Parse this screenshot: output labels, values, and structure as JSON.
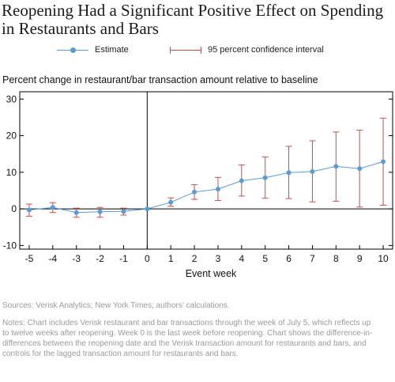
{
  "title": "Reopening Had a Significant Positive Effect on Spending in Restaurants and Bars",
  "legend": {
    "estimate": "Estimate",
    "ci": "95 percent confidence interval"
  },
  "colors": {
    "estimate": "#5b9bd5",
    "ci": "#c0504d",
    "axis": "#000000",
    "note_text": "#9a9a9a"
  },
  "chart_data": {
    "type": "line",
    "ylabel": "Percent change in restaurant/bar transaction amount relative to baseline",
    "xlabel": "Event week",
    "x": [
      -5,
      -4,
      -3,
      -2,
      -1,
      0,
      1,
      2,
      3,
      4,
      5,
      6,
      7,
      8,
      9,
      10
    ],
    "xticks": [
      "-5",
      "-4",
      "-3",
      "-2",
      "-1",
      "0",
      "1",
      "2",
      "3",
      "4",
      "5",
      "6",
      "7",
      "8",
      "9",
      "10"
    ],
    "yticks": [
      "30",
      "20",
      "10",
      "0",
      "-10"
    ],
    "ytick_values": [
      30,
      20,
      10,
      0,
      -10
    ],
    "xlim": [
      -5.4,
      10.4
    ],
    "ylim": [
      -11,
      32
    ],
    "series": [
      {
        "name": "Estimate",
        "values": [
          -0.3,
          0.4,
          -1.0,
          -0.8,
          -0.7,
          0.0,
          1.8,
          4.6,
          5.4,
          7.7,
          8.5,
          9.9,
          10.2,
          11.6,
          11.0,
          12.9
        ],
        "ci_low": [
          -2.0,
          -1.0,
          -2.3,
          -2.3,
          -1.7,
          0.0,
          0.7,
          2.6,
          2.3,
          3.5,
          2.9,
          2.8,
          1.9,
          2.1,
          0.5,
          1.0
        ],
        "ci_high": [
          1.3,
          1.7,
          0.2,
          0.4,
          0.2,
          0.0,
          3.0,
          6.6,
          8.6,
          12.0,
          14.2,
          17.1,
          18.6,
          21.0,
          21.5,
          24.8
        ]
      }
    ]
  },
  "sources": "Sources: Verisk Analytics; New York Times; authors’ calculations.",
  "notes": "Notes: Chart includes Verisk restaurant and bar transactions through the week of July 5, which reflects up to twelve weeks after reopening. Week 0 is the last week before reopening. Chart shows the difference-in-differences between the reopening date and the Verisk transaction amount for restaurants and bars, and controls for the lagged transaction amount for restaurants and bars."
}
